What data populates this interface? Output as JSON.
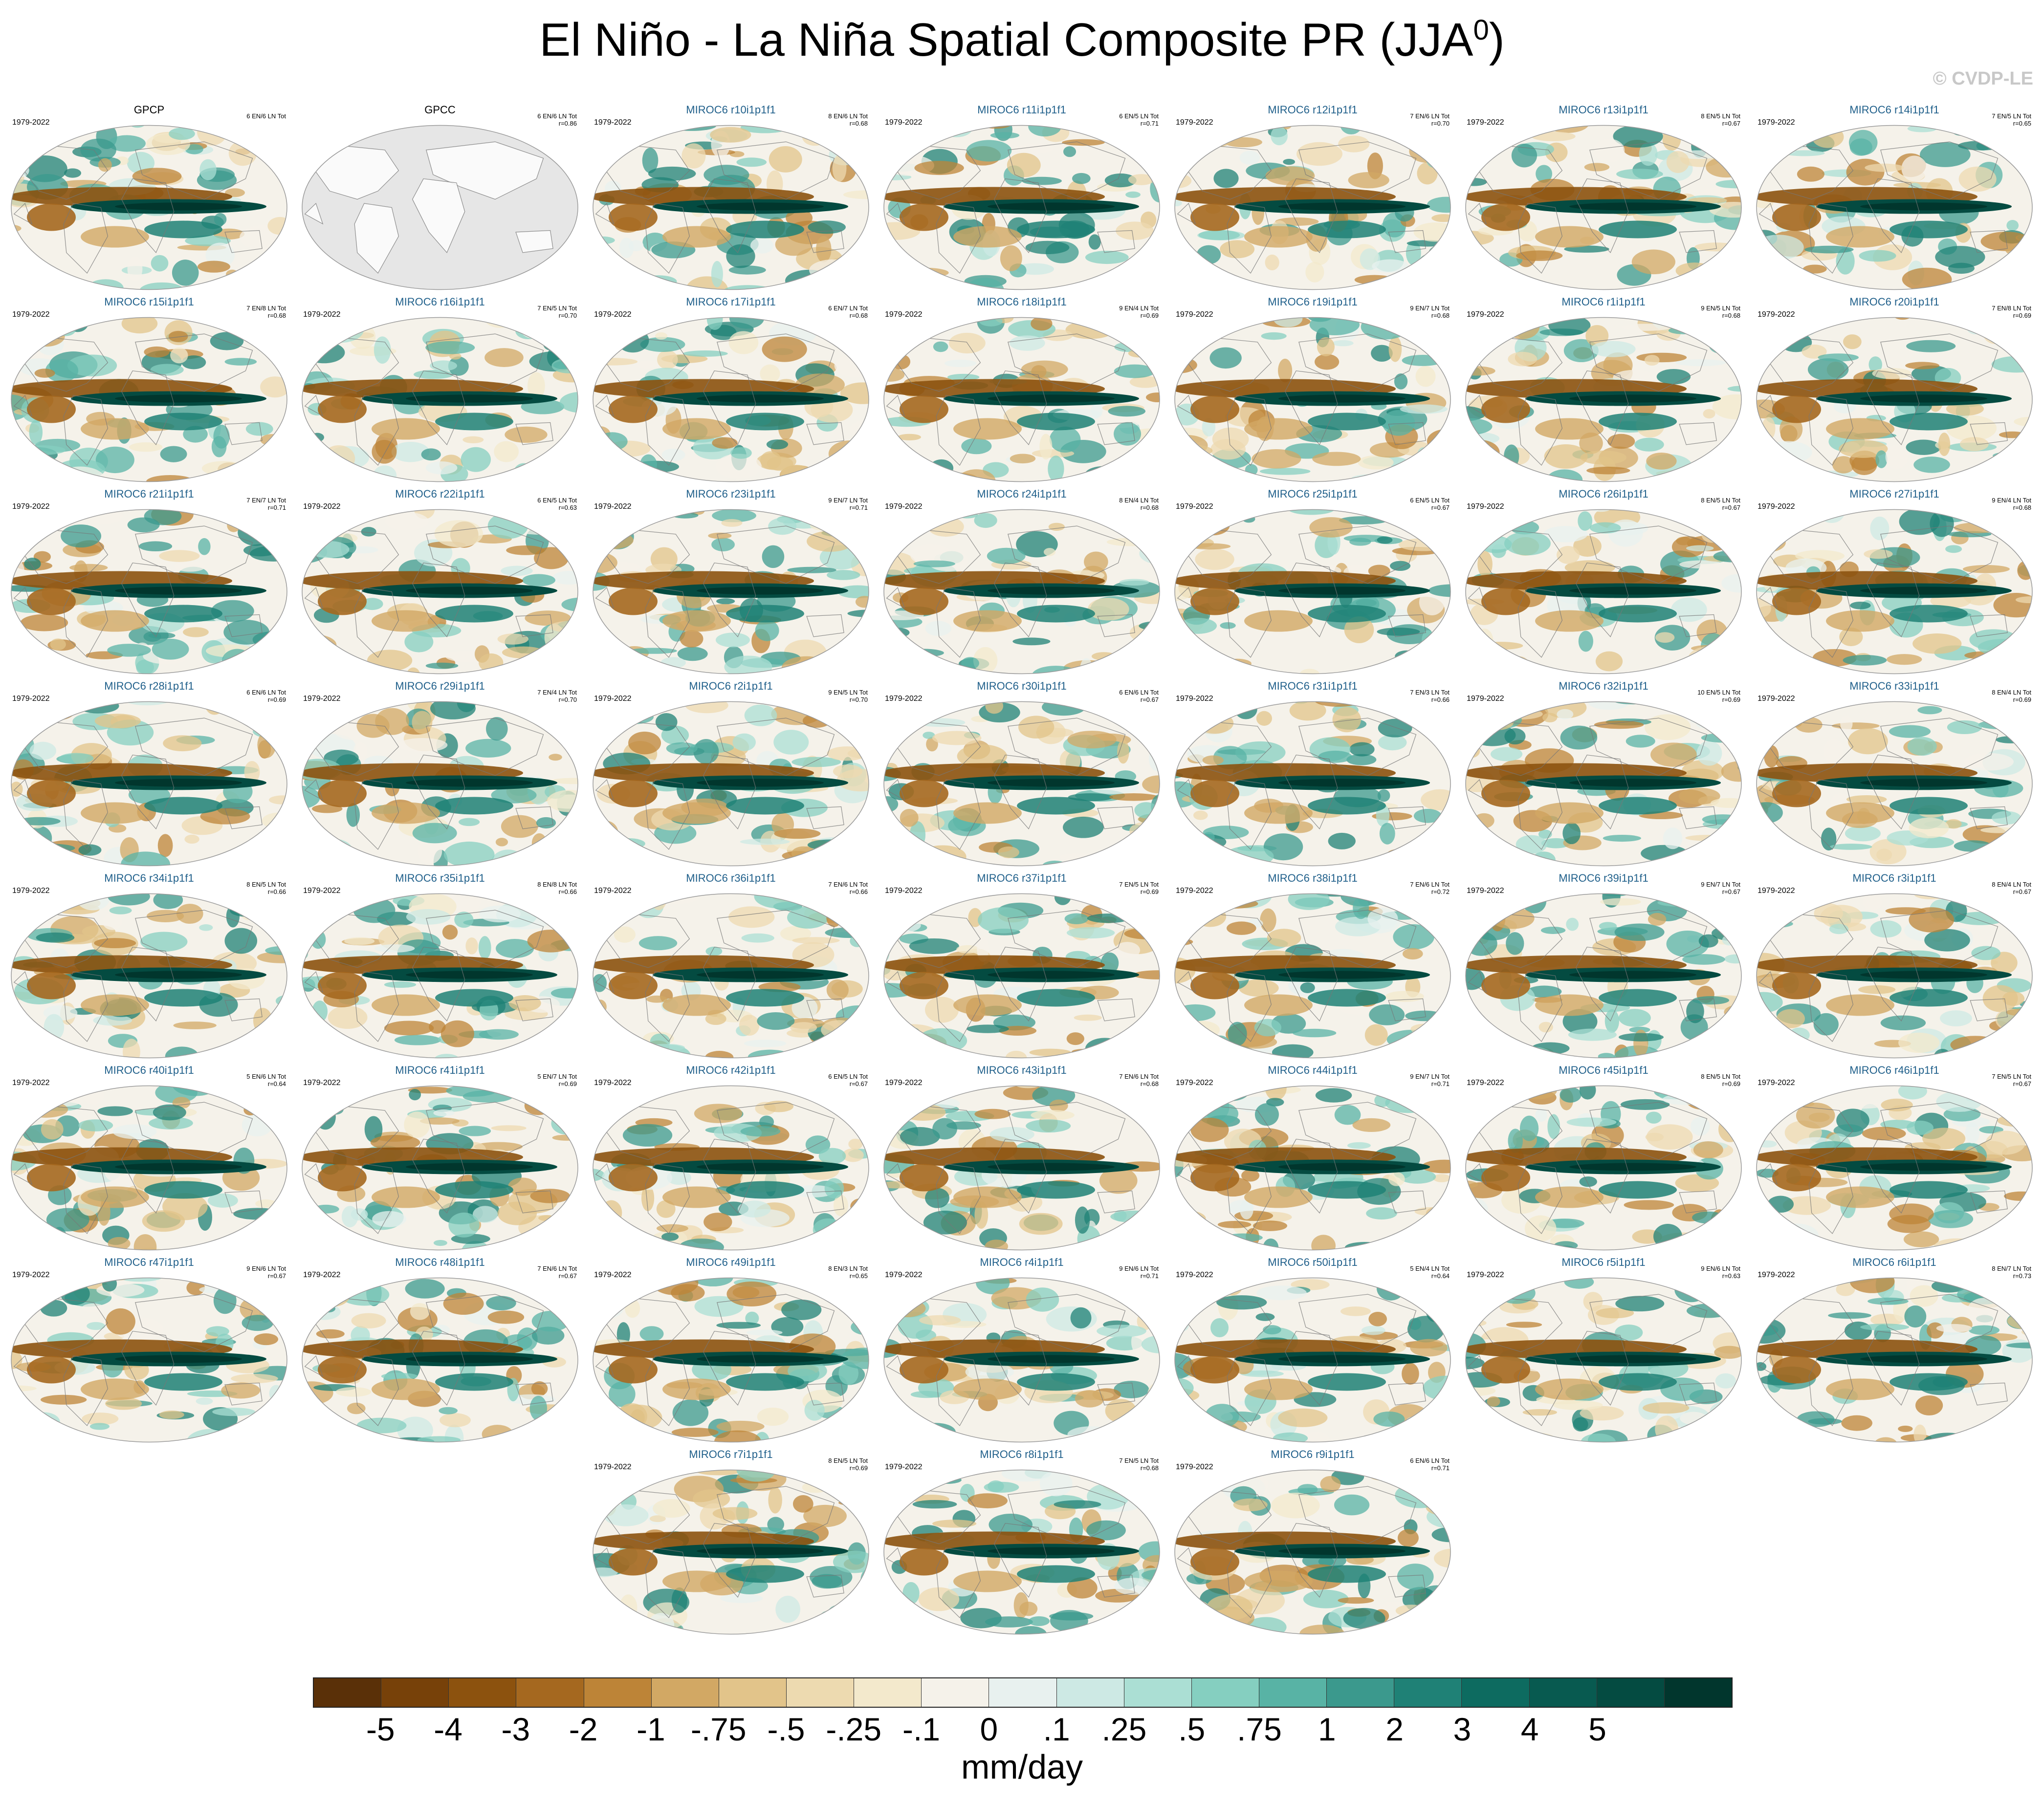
{
  "title_main": "El Niño - La Niña Spatial Composite PR (JJA",
  "title_sup": "0",
  "title_end": ")",
  "watermark": "© CVDP-LE",
  "panels": [
    {
      "name": "GPCP",
      "period": "1979-2022",
      "counts": "6 EN/6 LN Tot",
      "r": "",
      "obs": true,
      "empty": false
    },
    {
      "name": "GPCC",
      "period": "",
      "counts": "6 EN/6 LN Tot",
      "r": "r=0.86",
      "obs": true,
      "empty": true
    },
    {
      "name": "MIROC6 r10i1p1f1",
      "period": "1979-2022",
      "counts": "8 EN/6 LN Tot",
      "r": "r=0.68"
    },
    {
      "name": "MIROC6 r11i1p1f1",
      "period": "1979-2022",
      "counts": "6 EN/5 LN Tot",
      "r": "r=0.71"
    },
    {
      "name": "MIROC6 r12i1p1f1",
      "period": "1979-2022",
      "counts": "7 EN/6 LN Tot",
      "r": "r=0.70"
    },
    {
      "name": "MIROC6 r13i1p1f1",
      "period": "1979-2022",
      "counts": "8 EN/5 LN Tot",
      "r": "r=0.67"
    },
    {
      "name": "MIROC6 r14i1p1f1",
      "period": "1979-2022",
      "counts": "7 EN/5 LN Tot",
      "r": "r=0.65"
    },
    {
      "name": "MIROC6 r15i1p1f1",
      "period": "1979-2022",
      "counts": "7 EN/8 LN Tot",
      "r": "r=0.68"
    },
    {
      "name": "MIROC6 r16i1p1f1",
      "period": "1979-2022",
      "counts": "7 EN/5 LN Tot",
      "r": "r=0.70"
    },
    {
      "name": "MIROC6 r17i1p1f1",
      "period": "1979-2022",
      "counts": "6 EN/7 LN Tot",
      "r": "r=0.68"
    },
    {
      "name": "MIROC6 r18i1p1f1",
      "period": "1979-2022",
      "counts": "9 EN/4 LN Tot",
      "r": "r=0.69"
    },
    {
      "name": "MIROC6 r19i1p1f1",
      "period": "1979-2022",
      "counts": "9 EN/7 LN Tot",
      "r": "r=0.68"
    },
    {
      "name": "MIROC6 r1i1p1f1",
      "period": "1979-2022",
      "counts": "9 EN/5 LN Tot",
      "r": "r=0.68"
    },
    {
      "name": "MIROC6 r20i1p1f1",
      "period": "1979-2022",
      "counts": "7 EN/8 LN Tot",
      "r": "r=0.69"
    },
    {
      "name": "MIROC6 r21i1p1f1",
      "period": "1979-2022",
      "counts": "7 EN/7 LN Tot",
      "r": "r=0.71"
    },
    {
      "name": "MIROC6 r22i1p1f1",
      "period": "1979-2022",
      "counts": "6 EN/5 LN Tot",
      "r": "r=0.63"
    },
    {
      "name": "MIROC6 r23i1p1f1",
      "period": "1979-2022",
      "counts": "9 EN/7 LN Tot",
      "r": "r=0.71"
    },
    {
      "name": "MIROC6 r24i1p1f1",
      "period": "1979-2022",
      "counts": "8 EN/4 LN Tot",
      "r": "r=0.68"
    },
    {
      "name": "MIROC6 r25i1p1f1",
      "period": "1979-2022",
      "counts": "6 EN/5 LN Tot",
      "r": "r=0.67"
    },
    {
      "name": "MIROC6 r26i1p1f1",
      "period": "1979-2022",
      "counts": "8 EN/5 LN Tot",
      "r": "r=0.67"
    },
    {
      "name": "MIROC6 r27i1p1f1",
      "period": "1979-2022",
      "counts": "9 EN/4 LN Tot",
      "r": "r=0.68"
    },
    {
      "name": "MIROC6 r28i1p1f1",
      "period": "1979-2022",
      "counts": "6 EN/6 LN Tot",
      "r": "r=0.69"
    },
    {
      "name": "MIROC6 r29i1p1f1",
      "period": "1979-2022",
      "counts": "7 EN/4 LN Tot",
      "r": "r=0.70"
    },
    {
      "name": "MIROC6 r2i1p1f1",
      "period": "1979-2022",
      "counts": "9 EN/5 LN Tot",
      "r": "r=0.70"
    },
    {
      "name": "MIROC6 r30i1p1f1",
      "period": "1979-2022",
      "counts": "6 EN/6 LN Tot",
      "r": "r=0.67"
    },
    {
      "name": "MIROC6 r31i1p1f1",
      "period": "1979-2022",
      "counts": "7 EN/3 LN Tot",
      "r": "r=0.66"
    },
    {
      "name": "MIROC6 r32i1p1f1",
      "period": "1979-2022",
      "counts": "10 EN/5 LN Tot",
      "r": "r=0.69"
    },
    {
      "name": "MIROC6 r33i1p1f1",
      "period": "1979-2022",
      "counts": "8 EN/4 LN Tot",
      "r": "r=0.69"
    },
    {
      "name": "MIROC6 r34i1p1f1",
      "period": "1979-2022",
      "counts": "8 EN/5 LN Tot",
      "r": "r=0.66"
    },
    {
      "name": "MIROC6 r35i1p1f1",
      "period": "1979-2022",
      "counts": "8 EN/8 LN Tot",
      "r": "r=0.66"
    },
    {
      "name": "MIROC6 r36i1p1f1",
      "period": "1979-2022",
      "counts": "7 EN/6 LN Tot",
      "r": "r=0.66"
    },
    {
      "name": "MIROC6 r37i1p1f1",
      "period": "1979-2022",
      "counts": "7 EN/5 LN Tot",
      "r": "r=0.69"
    },
    {
      "name": "MIROC6 r38i1p1f1",
      "period": "1979-2022",
      "counts": "7 EN/6 LN Tot",
      "r": "r=0.72"
    },
    {
      "name": "MIROC6 r39i1p1f1",
      "period": "1979-2022",
      "counts": "9 EN/7 LN Tot",
      "r": "r=0.67"
    },
    {
      "name": "MIROC6 r3i1p1f1",
      "period": "1979-2022",
      "counts": "8 EN/4 LN Tot",
      "r": "r=0.67"
    },
    {
      "name": "MIROC6 r40i1p1f1",
      "period": "1979-2022",
      "counts": "5 EN/6 LN Tot",
      "r": "r=0.64"
    },
    {
      "name": "MIROC6 r41i1p1f1",
      "period": "1979-2022",
      "counts": "5 EN/7 LN Tot",
      "r": "r=0.69"
    },
    {
      "name": "MIROC6 r42i1p1f1",
      "period": "1979-2022",
      "counts": "6 EN/5 LN Tot",
      "r": "r=0.67"
    },
    {
      "name": "MIROC6 r43i1p1f1",
      "period": "1979-2022",
      "counts": "7 EN/6 LN Tot",
      "r": "r=0.68"
    },
    {
      "name": "MIROC6 r44i1p1f1",
      "period": "1979-2022",
      "counts": "9 EN/7 LN Tot",
      "r": "r=0.71"
    },
    {
      "name": "MIROC6 r45i1p1f1",
      "period": "1979-2022",
      "counts": "8 EN/5 LN Tot",
      "r": "r=0.69"
    },
    {
      "name": "MIROC6 r46i1p1f1",
      "period": "1979-2022",
      "counts": "7 EN/5 LN Tot",
      "r": "r=0.67"
    },
    {
      "name": "MIROC6 r47i1p1f1",
      "period": "1979-2022",
      "counts": "9 EN/6 LN Tot",
      "r": "r=0.67"
    },
    {
      "name": "MIROC6 r48i1p1f1",
      "period": "1979-2022",
      "counts": "7 EN/6 LN Tot",
      "r": "r=0.67"
    },
    {
      "name": "MIROC6 r49i1p1f1",
      "period": "1979-2022",
      "counts": "8 EN/3 LN Tot",
      "r": "r=0.65"
    },
    {
      "name": "MIROC6 r4i1p1f1",
      "period": "1979-2022",
      "counts": "9 EN/6 LN Tot",
      "r": "r=0.71"
    },
    {
      "name": "MIROC6 r50i1p1f1",
      "period": "1979-2022",
      "counts": "5 EN/4 LN Tot",
      "r": "r=0.64"
    },
    {
      "name": "MIROC6 r5i1p1f1",
      "period": "1979-2022",
      "counts": "9 EN/6 LN Tot",
      "r": "r=0.63"
    },
    {
      "name": "MIROC6 r6i1p1f1",
      "period": "1979-2022",
      "counts": "8 EN/7 LN Tot",
      "r": "r=0.73"
    },
    {
      "name": "MIROC6 r7i1p1f1",
      "period": "1979-2022",
      "counts": "8 EN/5 LN Tot",
      "r": "r=0.69"
    },
    {
      "name": "MIROC6 r8i1p1f1",
      "period": "1979-2022",
      "counts": "7 EN/5 LN Tot",
      "r": "r=0.68"
    },
    {
      "name": "MIROC6 r9i1p1f1",
      "period": "1979-2022",
      "counts": "6 EN/6 LN Tot",
      "r": "r=0.71"
    }
  ],
  "colorbar": {
    "colors": [
      "#5a3008",
      "#774109",
      "#8c520e",
      "#a5681f",
      "#bd8437",
      "#d2a864",
      "#e2c48a",
      "#eddab0",
      "#f3e9cc",
      "#f5f2ea",
      "#e8f1ef",
      "#cde9e4",
      "#abdfd4",
      "#85cfc0",
      "#58b3a5",
      "#3b998d",
      "#1f8176",
      "#0d6b60",
      "#085a50",
      "#044b41",
      "#01362d"
    ],
    "labels": [
      "-5",
      "-4",
      "-3",
      "-2",
      "-1",
      "-.75",
      "-.5",
      "-.25",
      "-.1",
      "0",
      ".1",
      ".25",
      ".5",
      ".75",
      "1",
      "2",
      "3",
      "4",
      "5"
    ],
    "unit": "mm/day"
  }
}
